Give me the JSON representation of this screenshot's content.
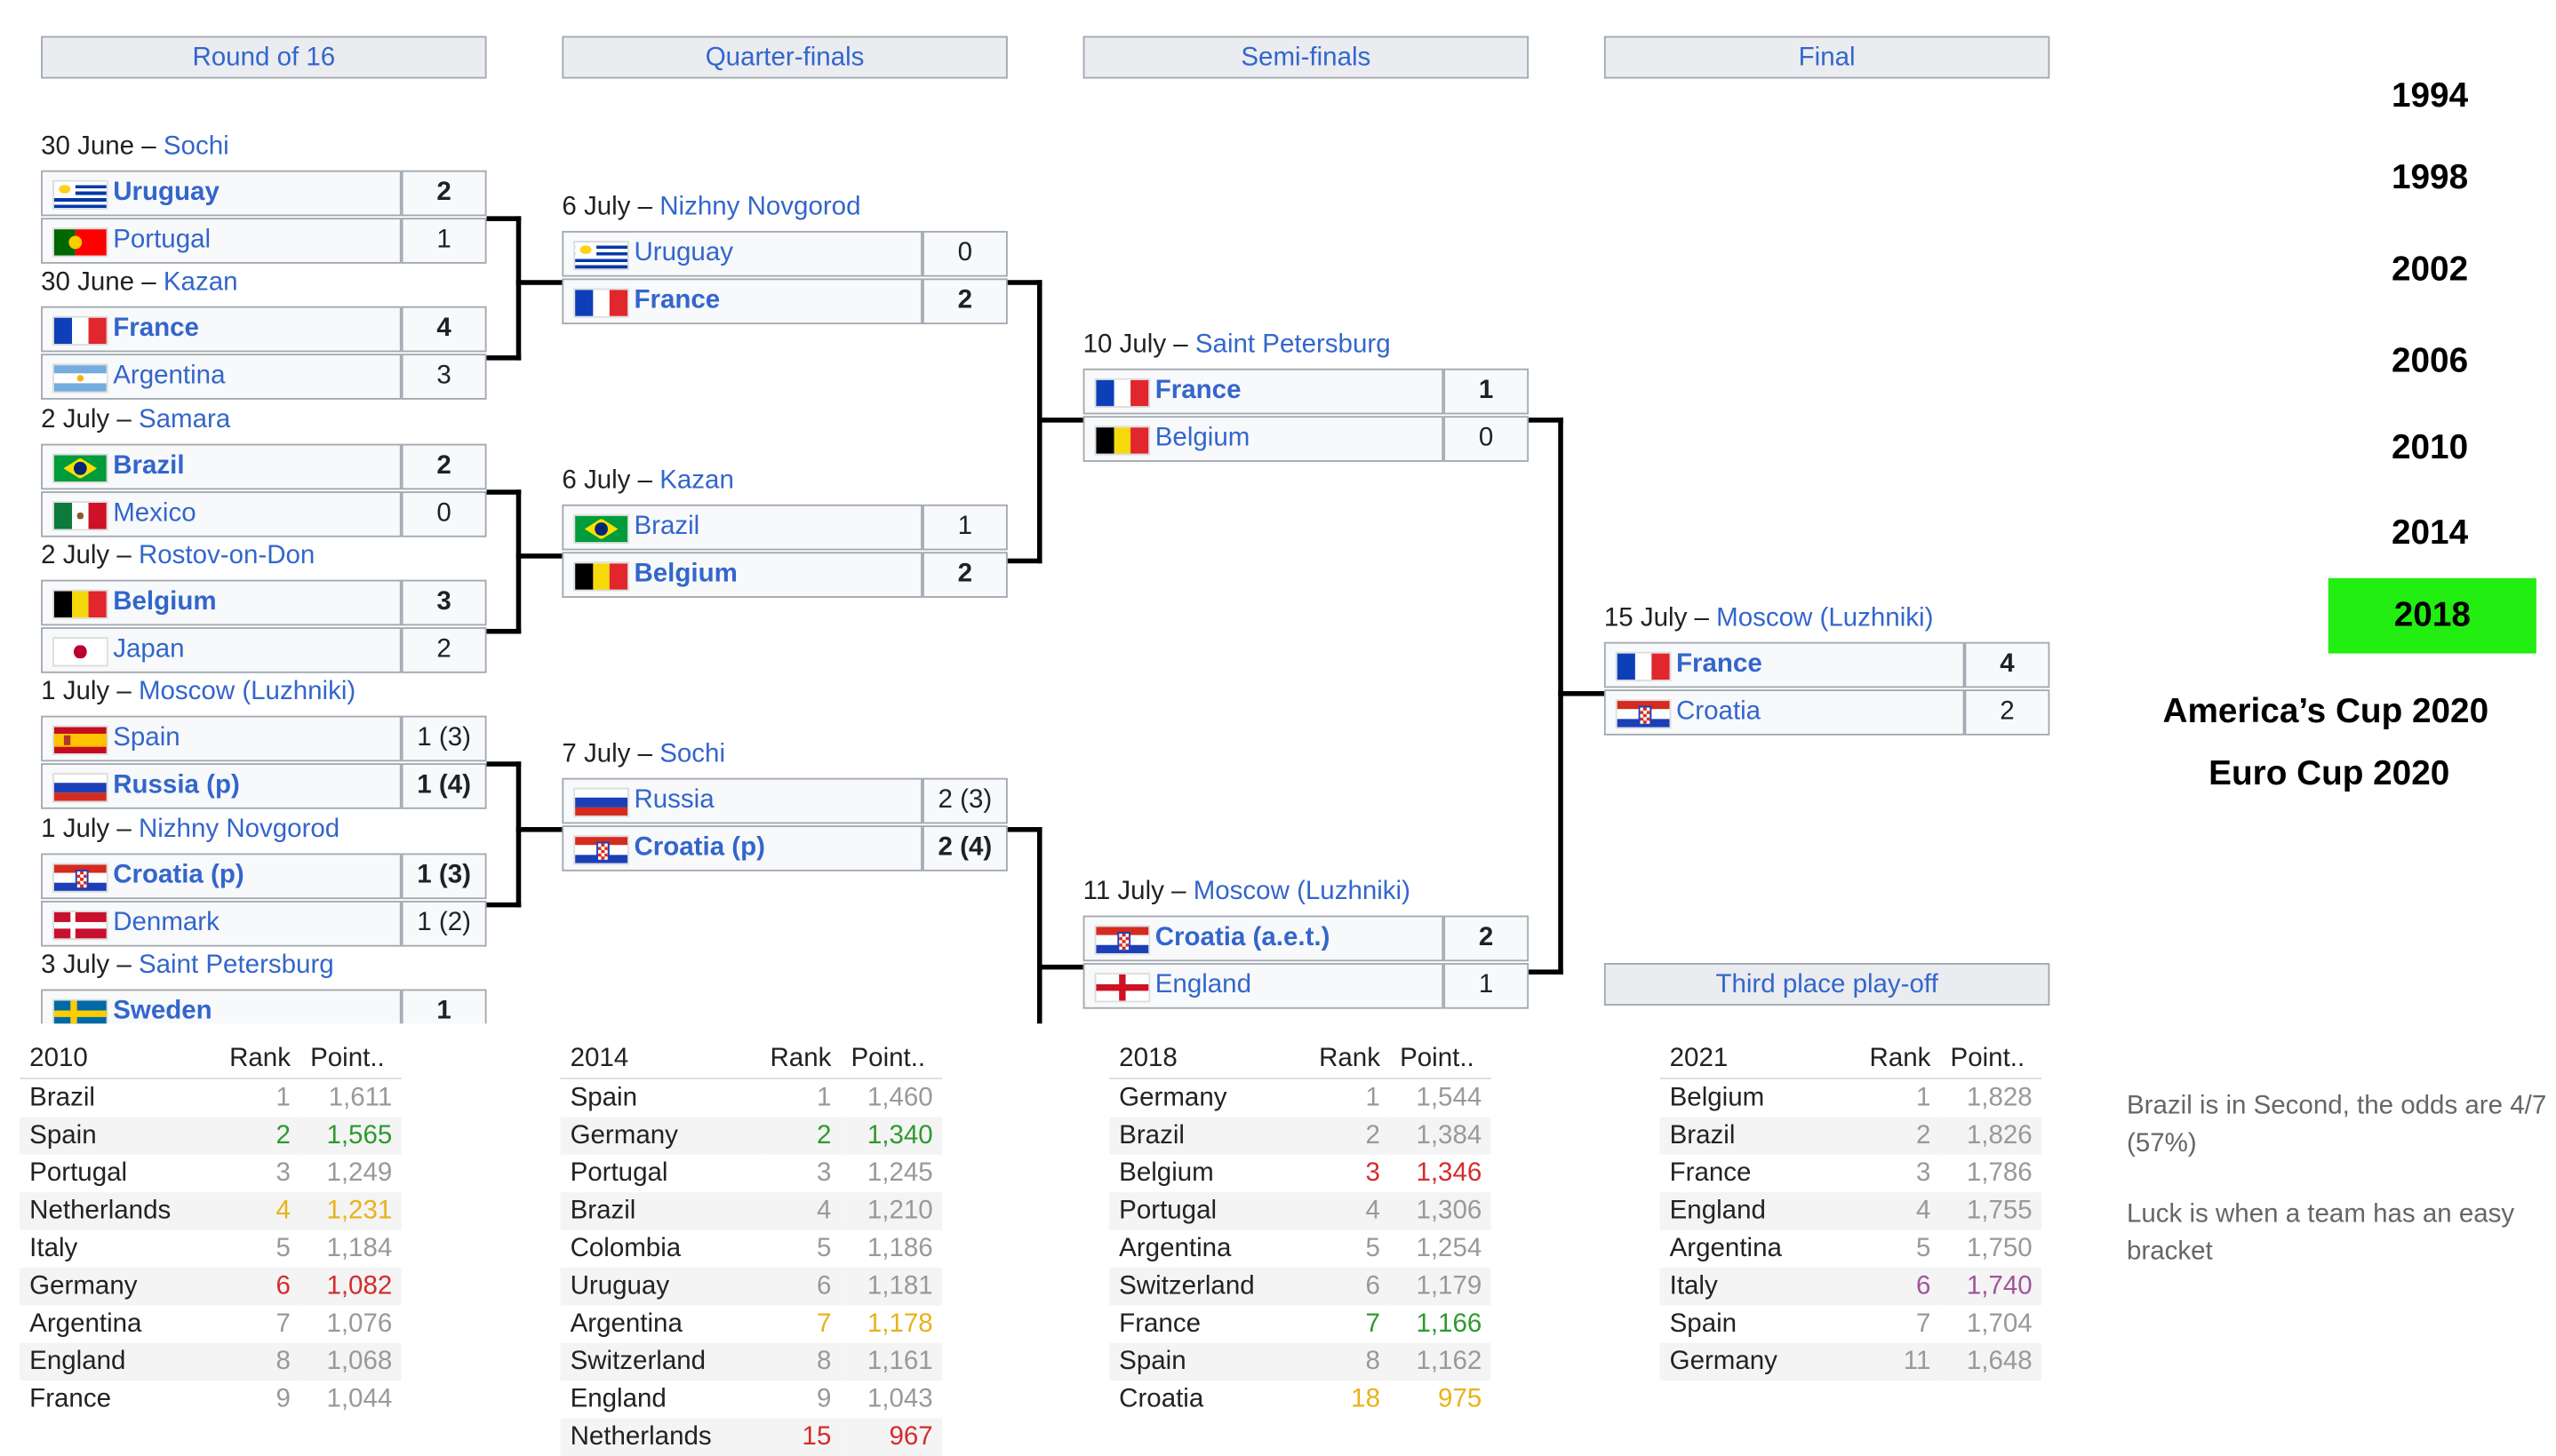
{
  "rounds": [
    "Round of 16",
    "Quarter-finals",
    "Semi-finals",
    "Final",
    "Third place play-off"
  ],
  "r16": [
    {
      "label_date": "30 June – ",
      "label_venue": "Sochi",
      "t1": {
        "name": "Uruguay",
        "score": "2",
        "flag": "uruguay"
      },
      "t2": {
        "name": "Portugal",
        "score": "1",
        "flag": "portugal"
      }
    },
    {
      "label_date": "30 June – ",
      "label_venue": "Kazan",
      "t1": {
        "name": "France",
        "score": "4",
        "flag": "france"
      },
      "t2": {
        "name": "Argentina",
        "score": "3",
        "flag": "argentina"
      }
    },
    {
      "label_date": "2 July – ",
      "label_venue": "Samara",
      "t1": {
        "name": "Brazil",
        "score": "2",
        "flag": "brazil"
      },
      "t2": {
        "name": "Mexico",
        "score": "0",
        "flag": "mexico"
      }
    },
    {
      "label_date": "2 July – ",
      "label_venue": "Rostov-on-Don",
      "t1": {
        "name": "Belgium",
        "score": "3",
        "flag": "belgium"
      },
      "t2": {
        "name": "Japan",
        "score": "2",
        "flag": "japan"
      }
    },
    {
      "label_date": "1 July – ",
      "label_venue": "Moscow (Luzhniki)",
      "t1": {
        "name": "Spain",
        "score": "1 (3)",
        "flag": "spain"
      },
      "t2": {
        "name": "Russia (p)",
        "score": "1 (4)",
        "flag": "russia"
      }
    },
    {
      "label_date": "1 July – ",
      "label_venue": "Nizhny Novgorod",
      "t1": {
        "name": "Croatia (p)",
        "score": "1 (3)",
        "flag": "croatia"
      },
      "t2": {
        "name": "Denmark",
        "score": "1 (2)",
        "flag": "denmark"
      }
    },
    {
      "label_date": "3 July – ",
      "label_venue": "Saint Petersburg",
      "t1": {
        "name": "Sweden",
        "score": "1",
        "flag": "sweden"
      }
    }
  ],
  "qf": [
    {
      "label_date": "6 July – ",
      "label_venue": "Nizhny Novgorod",
      "t1": {
        "name": "Uruguay",
        "score": "0",
        "flag": "uruguay"
      },
      "t2": {
        "name": "France",
        "score": "2",
        "flag": "france"
      }
    },
    {
      "label_date": "6 July – ",
      "label_venue": "Kazan",
      "t1": {
        "name": "Brazil",
        "score": "1",
        "flag": "brazil"
      },
      "t2": {
        "name": "Belgium",
        "score": "2",
        "flag": "belgium"
      }
    },
    {
      "label_date": "7 July – ",
      "label_venue": "Sochi",
      "t1": {
        "name": "Russia",
        "score": "2 (3)",
        "flag": "russia"
      },
      "t2": {
        "name": "Croatia (p)",
        "score": "2 (4)",
        "flag": "croatia"
      }
    }
  ],
  "sf": [
    {
      "label_date": "10 July – ",
      "label_venue": "Saint Petersburg",
      "t1": {
        "name": "France",
        "score": "1",
        "flag": "france"
      },
      "t2": {
        "name": "Belgium",
        "score": "0",
        "flag": "belgium"
      }
    },
    {
      "label_date": "11 July – ",
      "label_venue": "Moscow (Luzhniki)",
      "t1": {
        "name": "Croatia (a.e.t.)",
        "score": "2",
        "flag": "croatia"
      },
      "t2": {
        "name": "England",
        "score": "1",
        "flag": "england"
      }
    }
  ],
  "final": {
    "label_date": "15 July – ",
    "label_venue": "Moscow (Luzhniki)",
    "t1": {
      "name": "France",
      "score": "4",
      "flag": "france"
    },
    "t2": {
      "name": "Croatia",
      "score": "2",
      "flag": "croatia"
    }
  },
  "years": [
    "1994",
    "1998",
    "2002",
    "2006",
    "2010",
    "2014",
    "2018"
  ],
  "active_year": "2018",
  "active_color": "#22ee11",
  "cups": [
    "America’s Cup 2020",
    "Euro Cup 2020"
  ],
  "notes": [
    "Brazil is in Second, the odds are 4/7 (57%)",
    "Luck is when a team has an easy bracket"
  ],
  "tables": [
    {
      "year": "2010",
      "rank_header": "Rank",
      "points_header": "Point..",
      "rows": [
        [
          "Brazil",
          "1",
          "1,611",
          ""
        ],
        [
          "Spain",
          "2",
          "1,565",
          "#2e9a2e"
        ],
        [
          "Portugal",
          "3",
          "1,249",
          ""
        ],
        [
          "Netherlands",
          "4",
          "1,231",
          "#e8b21a"
        ],
        [
          "Italy",
          "5",
          "1,184",
          ""
        ],
        [
          "Germany",
          "6",
          "1,082",
          "#d42c2c"
        ],
        [
          "Argentina",
          "7",
          "1,076",
          ""
        ],
        [
          "England",
          "8",
          "1,068",
          ""
        ],
        [
          "France",
          "9",
          "1,044",
          ""
        ]
      ]
    },
    {
      "year": "2014",
      "rank_header": "Rank",
      "points_header": "Point..",
      "rows": [
        [
          "Spain",
          "1",
          "1,460",
          ""
        ],
        [
          "Germany",
          "2",
          "1,340",
          "#2e9a2e"
        ],
        [
          "Portugal",
          "3",
          "1,245",
          ""
        ],
        [
          "Brazil",
          "4",
          "1,210",
          ""
        ],
        [
          "Colombia",
          "5",
          "1,186",
          ""
        ],
        [
          "Uruguay",
          "6",
          "1,181",
          ""
        ],
        [
          "Argentina",
          "7",
          "1,178",
          "#e8b21a"
        ],
        [
          "Switzerland",
          "8",
          "1,161",
          ""
        ],
        [
          "England",
          "9",
          "1,043",
          ""
        ],
        [
          "Netherlands",
          "15",
          "967",
          "#d42c2c"
        ]
      ]
    },
    {
      "year": "2018",
      "rank_header": "Rank",
      "points_header": "Point..",
      "rows": [
        [
          "Germany",
          "1",
          "1,544",
          ""
        ],
        [
          "Brazil",
          "2",
          "1,384",
          ""
        ],
        [
          "Belgium",
          "3",
          "1,346",
          "#d42c2c"
        ],
        [
          "Portugal",
          "4",
          "1,306",
          ""
        ],
        [
          "Argentina",
          "5",
          "1,254",
          ""
        ],
        [
          "Switzerland",
          "6",
          "1,179",
          ""
        ],
        [
          "France",
          "7",
          "1,166",
          "#2e9a2e"
        ],
        [
          "Spain",
          "8",
          "1,162",
          ""
        ],
        [
          "Croatia",
          "18",
          "975",
          "#e8b21a"
        ]
      ]
    },
    {
      "year": "2021",
      "rank_header": "Rank",
      "points_header": "Point..",
      "rows": [
        [
          "Belgium",
          "1",
          "1,828",
          ""
        ],
        [
          "Brazil",
          "2",
          "1,826",
          ""
        ],
        [
          "France",
          "3",
          "1,786",
          ""
        ],
        [
          "England",
          "4",
          "1,755",
          ""
        ],
        [
          "Argentina",
          "5",
          "1,750",
          ""
        ],
        [
          "Italy",
          "6",
          "1,740",
          "#a0559a"
        ],
        [
          "Spain",
          "7",
          "1,704",
          ""
        ],
        [
          "Germany",
          "11",
          "1,648",
          ""
        ]
      ]
    }
  ]
}
